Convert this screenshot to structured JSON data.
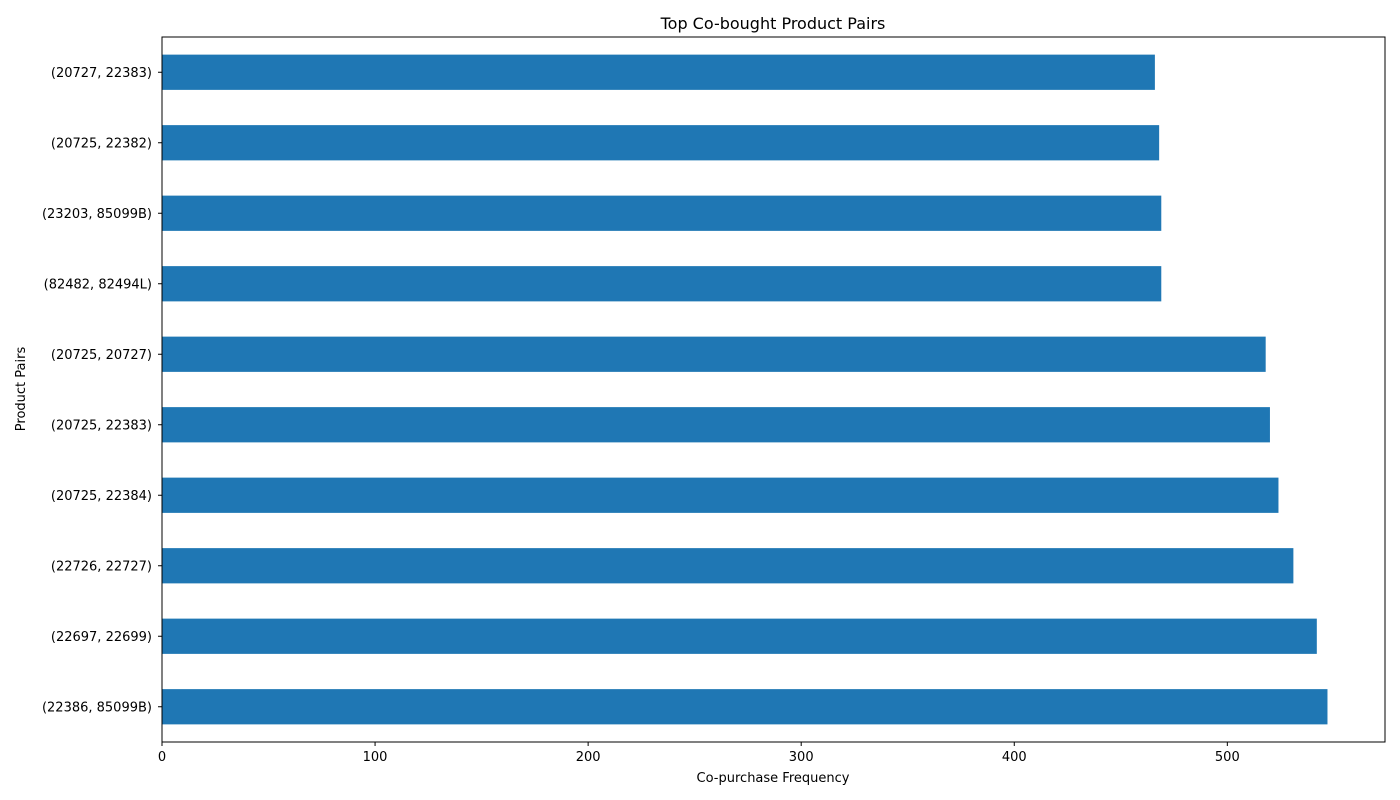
{
  "chart_data": {
    "type": "bar",
    "orientation": "horizontal",
    "title": "Top Co-bought Product Pairs",
    "xlabel": "Co-purchase Frequency",
    "ylabel": "Product Pairs",
    "categories": [
      "(22386, 85099B)",
      "(22697, 22699)",
      "(22726, 22727)",
      "(20725, 22384)",
      "(20725, 22383)",
      "(20725, 20727)",
      "(82482, 82494L)",
      "(23203, 85099B)",
      "(20725, 22382)",
      "(20727, 22383)"
    ],
    "values": [
      547,
      542,
      531,
      524,
      520,
      518,
      469,
      469,
      468,
      466
    ],
    "xlim": [
      0,
      574
    ],
    "xticks": [
      0,
      100,
      200,
      300,
      400,
      500
    ],
    "bar_color": "#1f77b4",
    "grid": false,
    "legend": false
  }
}
